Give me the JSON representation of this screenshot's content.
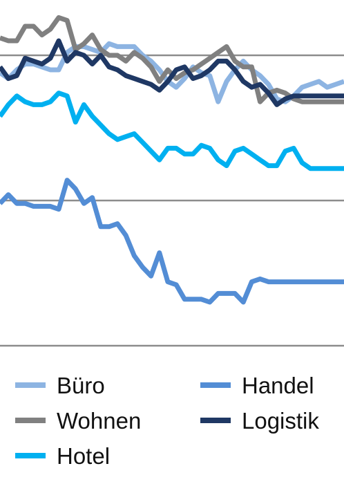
{
  "chart_data": {
    "type": "line",
    "title": "",
    "xlabel": "",
    "ylabel": "",
    "grid": true,
    "legend_position": "bottom",
    "ylim": [
      0,
      100
    ],
    "gridlines": [
      0,
      50,
      100
    ],
    "x": [
      1,
      2,
      3,
      4,
      5,
      6,
      7,
      8,
      9,
      10,
      11,
      12,
      13,
      14,
      15,
      16,
      17,
      18,
      19,
      20,
      21,
      22,
      23,
      24,
      25,
      26,
      27,
      28,
      29,
      30,
      31,
      32,
      33,
      34,
      35,
      36,
      37,
      38,
      39,
      40,
      41,
      42
    ],
    "series": [
      {
        "name": "Büro",
        "color": "#8DB4E2",
        "values": [
          94,
          92,
          95,
          97,
          97,
          96,
          95,
          95,
          101,
          103,
          103,
          102,
          101,
          104,
          103,
          103,
          103,
          100,
          98,
          95,
          91,
          89,
          92,
          96,
          94,
          93,
          84,
          91,
          95,
          98,
          95,
          93,
          90,
          85,
          84,
          86,
          89,
          90,
          91,
          89,
          90,
          91
        ]
      },
      {
        "name": "Wohnen",
        "color": "#808080",
        "values": [
          106,
          105,
          105,
          110,
          110,
          107,
          109,
          113,
          112,
          102,
          104,
          107,
          102,
          100,
          100,
          98,
          101,
          99,
          96,
          91,
          95,
          92,
          94,
          95,
          97,
          99,
          101,
          103,
          98,
          96,
          96,
          84,
          87,
          88,
          87,
          85,
          84,
          84,
          84,
          84,
          84,
          84
        ]
      },
      {
        "name": "Hotel",
        "color": "#00B0F0",
        "values": [
          79,
          83,
          86,
          84,
          83,
          83,
          84,
          87,
          86,
          77,
          83,
          79,
          76,
          73,
          71,
          72,
          73,
          70,
          67,
          64,
          68,
          68,
          66,
          66,
          69,
          68,
          64,
          62,
          67,
          68,
          66,
          64,
          62,
          62,
          67,
          68,
          63,
          61,
          61,
          61,
          61,
          61
        ]
      },
      {
        "name": "Handel",
        "color": "#538DD5",
        "values": [
          49,
          52,
          49,
          49,
          48,
          48,
          48,
          47,
          57,
          54,
          49,
          51,
          41,
          41,
          42,
          38,
          31,
          27,
          24,
          32,
          22,
          21,
          16,
          16,
          16,
          15,
          18,
          18,
          18,
          15,
          22,
          23,
          22,
          22,
          22,
          22,
          22,
          22,
          22,
          22,
          22,
          22
        ]
      },
      {
        "name": "Logistik",
        "color": "#1F3864",
        "values": [
          96,
          92,
          93,
          99,
          98,
          97,
          99,
          105,
          98,
          101,
          100,
          97,
          100,
          96,
          95,
          93,
          92,
          91,
          90,
          88,
          91,
          95,
          96,
          92,
          93,
          95,
          98,
          98,
          95,
          91,
          89,
          90,
          87,
          83,
          85,
          86,
          86,
          86,
          86,
          86,
          86,
          86
        ]
      }
    ]
  }
}
